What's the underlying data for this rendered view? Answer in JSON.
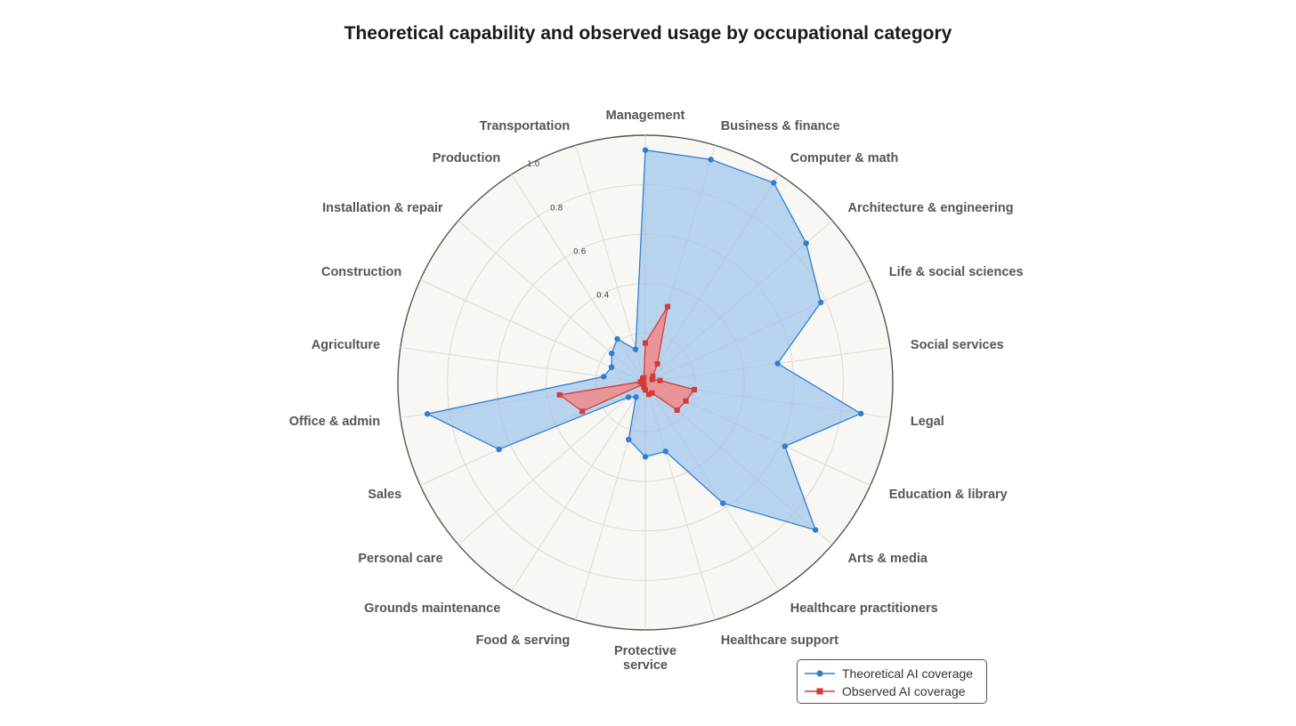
{
  "chart_data": {
    "type": "radar",
    "title": "Theoretical capability and observed usage by occupational category",
    "categories": [
      "Management",
      "Business & finance",
      "Computer & math",
      "Architecture & engineering",
      "Life & social sciences",
      "Social services",
      "Legal",
      "Education & library",
      "Arts & media",
      "Healthcare practitioners",
      "Healthcare support",
      "Protective service",
      "Food & serving",
      "Grounds maintenance",
      "Personal care",
      "Sales",
      "Office & admin",
      "Agriculture",
      "Construction",
      "Installation & repair",
      "Production",
      "Transportation"
    ],
    "category_label_lines": [
      [
        "Management"
      ],
      [
        "Business & finance"
      ],
      [
        "Computer & math"
      ],
      [
        "Architecture & engineering"
      ],
      [
        "Life & social sciences"
      ],
      [
        "Social services"
      ],
      [
        "Legal"
      ],
      [
        "Education & library"
      ],
      [
        "Arts & media"
      ],
      [
        "Healthcare practitioners"
      ],
      [
        "Healthcare support"
      ],
      [
        "Protective",
        "service"
      ],
      [
        "Food & serving"
      ],
      [
        "Grounds maintenance"
      ],
      [
        "Personal care"
      ],
      [
        "Sales"
      ],
      [
        "Office & admin"
      ],
      [
        "Agriculture"
      ],
      [
        "Construction"
      ],
      [
        "Installation & repair"
      ],
      [
        "Production"
      ],
      [
        "Transportation"
      ]
    ],
    "series": [
      {
        "name": "Theoretical AI coverage",
        "color": "#2f7fd0",
        "fill": "#9cc3ea",
        "marker": "circle",
        "values": [
          0.94,
          0.94,
          0.96,
          0.86,
          0.78,
          0.54,
          0.88,
          0.62,
          0.91,
          0.58,
          0.29,
          0.3,
          0.24,
          0.07,
          0.09,
          0.65,
          0.89,
          0.17,
          0.15,
          0.18,
          0.21,
          0.14
        ]
      },
      {
        "name": "Observed AI coverage",
        "color": "#d63a3a",
        "fill": "#ef8a8a",
        "marker": "square",
        "values": [
          0.16,
          0.32,
          0.09,
          0.04,
          0.03,
          0.06,
          0.2,
          0.18,
          0.17,
          0.05,
          0.05,
          0.03,
          0.02,
          0.01,
          0.01,
          0.28,
          0.35,
          0.02,
          0.01,
          0.01,
          0.02,
          0.02
        ]
      }
    ],
    "r_range": [
      0,
      1.0
    ],
    "r_ticks": [
      0.4,
      0.6,
      0.8,
      1.0
    ],
    "r_tick_labels": [
      "0.4",
      "0.6",
      "0.8",
      "1.0"
    ],
    "legend_position": "bottom-right",
    "grid": true
  }
}
